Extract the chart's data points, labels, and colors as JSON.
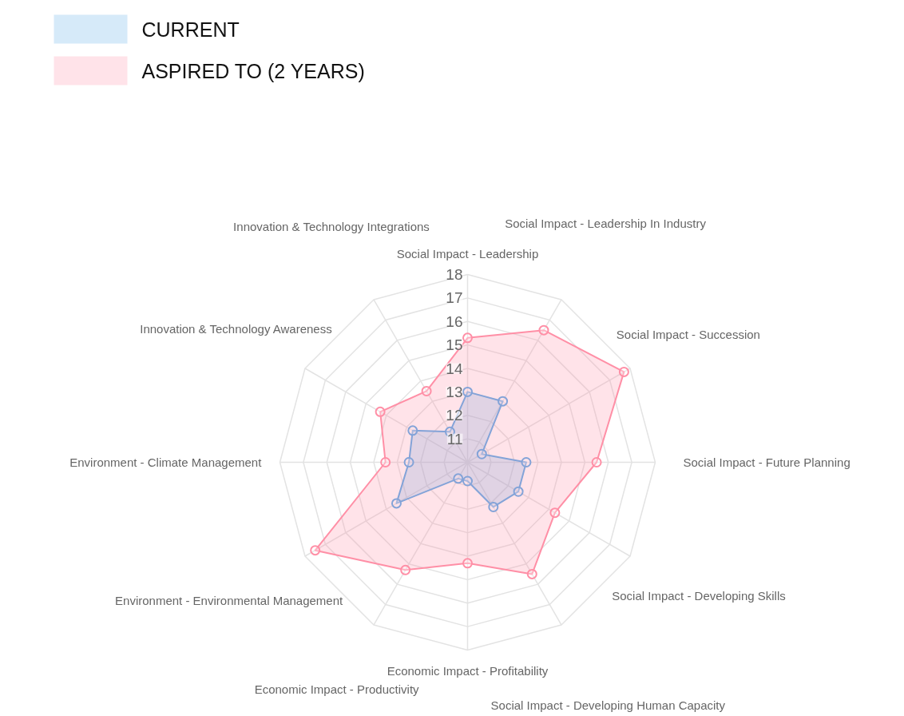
{
  "chart_data": {
    "type": "radar",
    "categories": [
      "Social Impact - Leadership",
      "Social Impact - Leadership In Industry",
      "Social Impact - Succession",
      "Social Impact - Future Planning",
      "Social Impact - Developing Skills",
      "Social Impact - Developing Human Capacity",
      "Economic Impact - Profitability",
      "Economic Impact - Productivity",
      "Environment - Environmental Management",
      "Environment - Climate Management",
      "Innovation & Technology Awareness",
      "Innovation & Technology Integrations"
    ],
    "series": [
      {
        "name": "CURRENT",
        "color": "#5aaae8",
        "values": [
          13.0,
          13.0,
          10.7,
          12.5,
          12.5,
          12.2,
          10.8,
          10.8,
          13.5,
          12.5,
          12.7,
          11.5
        ]
      },
      {
        "name": "ASPIRED TO (2 YEARS)",
        "color": "#ff8fa6",
        "values": [
          15.3,
          16.5,
          17.7,
          15.5,
          14.3,
          15.5,
          14.3,
          15.3,
          17.5,
          13.5,
          14.3,
          13.5
        ]
      }
    ],
    "ylim": [
      10,
      18
    ],
    "yticks": [
      11,
      12,
      13,
      14,
      15,
      16,
      17,
      18
    ],
    "grid": true,
    "legend": "top left",
    "marker": "circle"
  }
}
